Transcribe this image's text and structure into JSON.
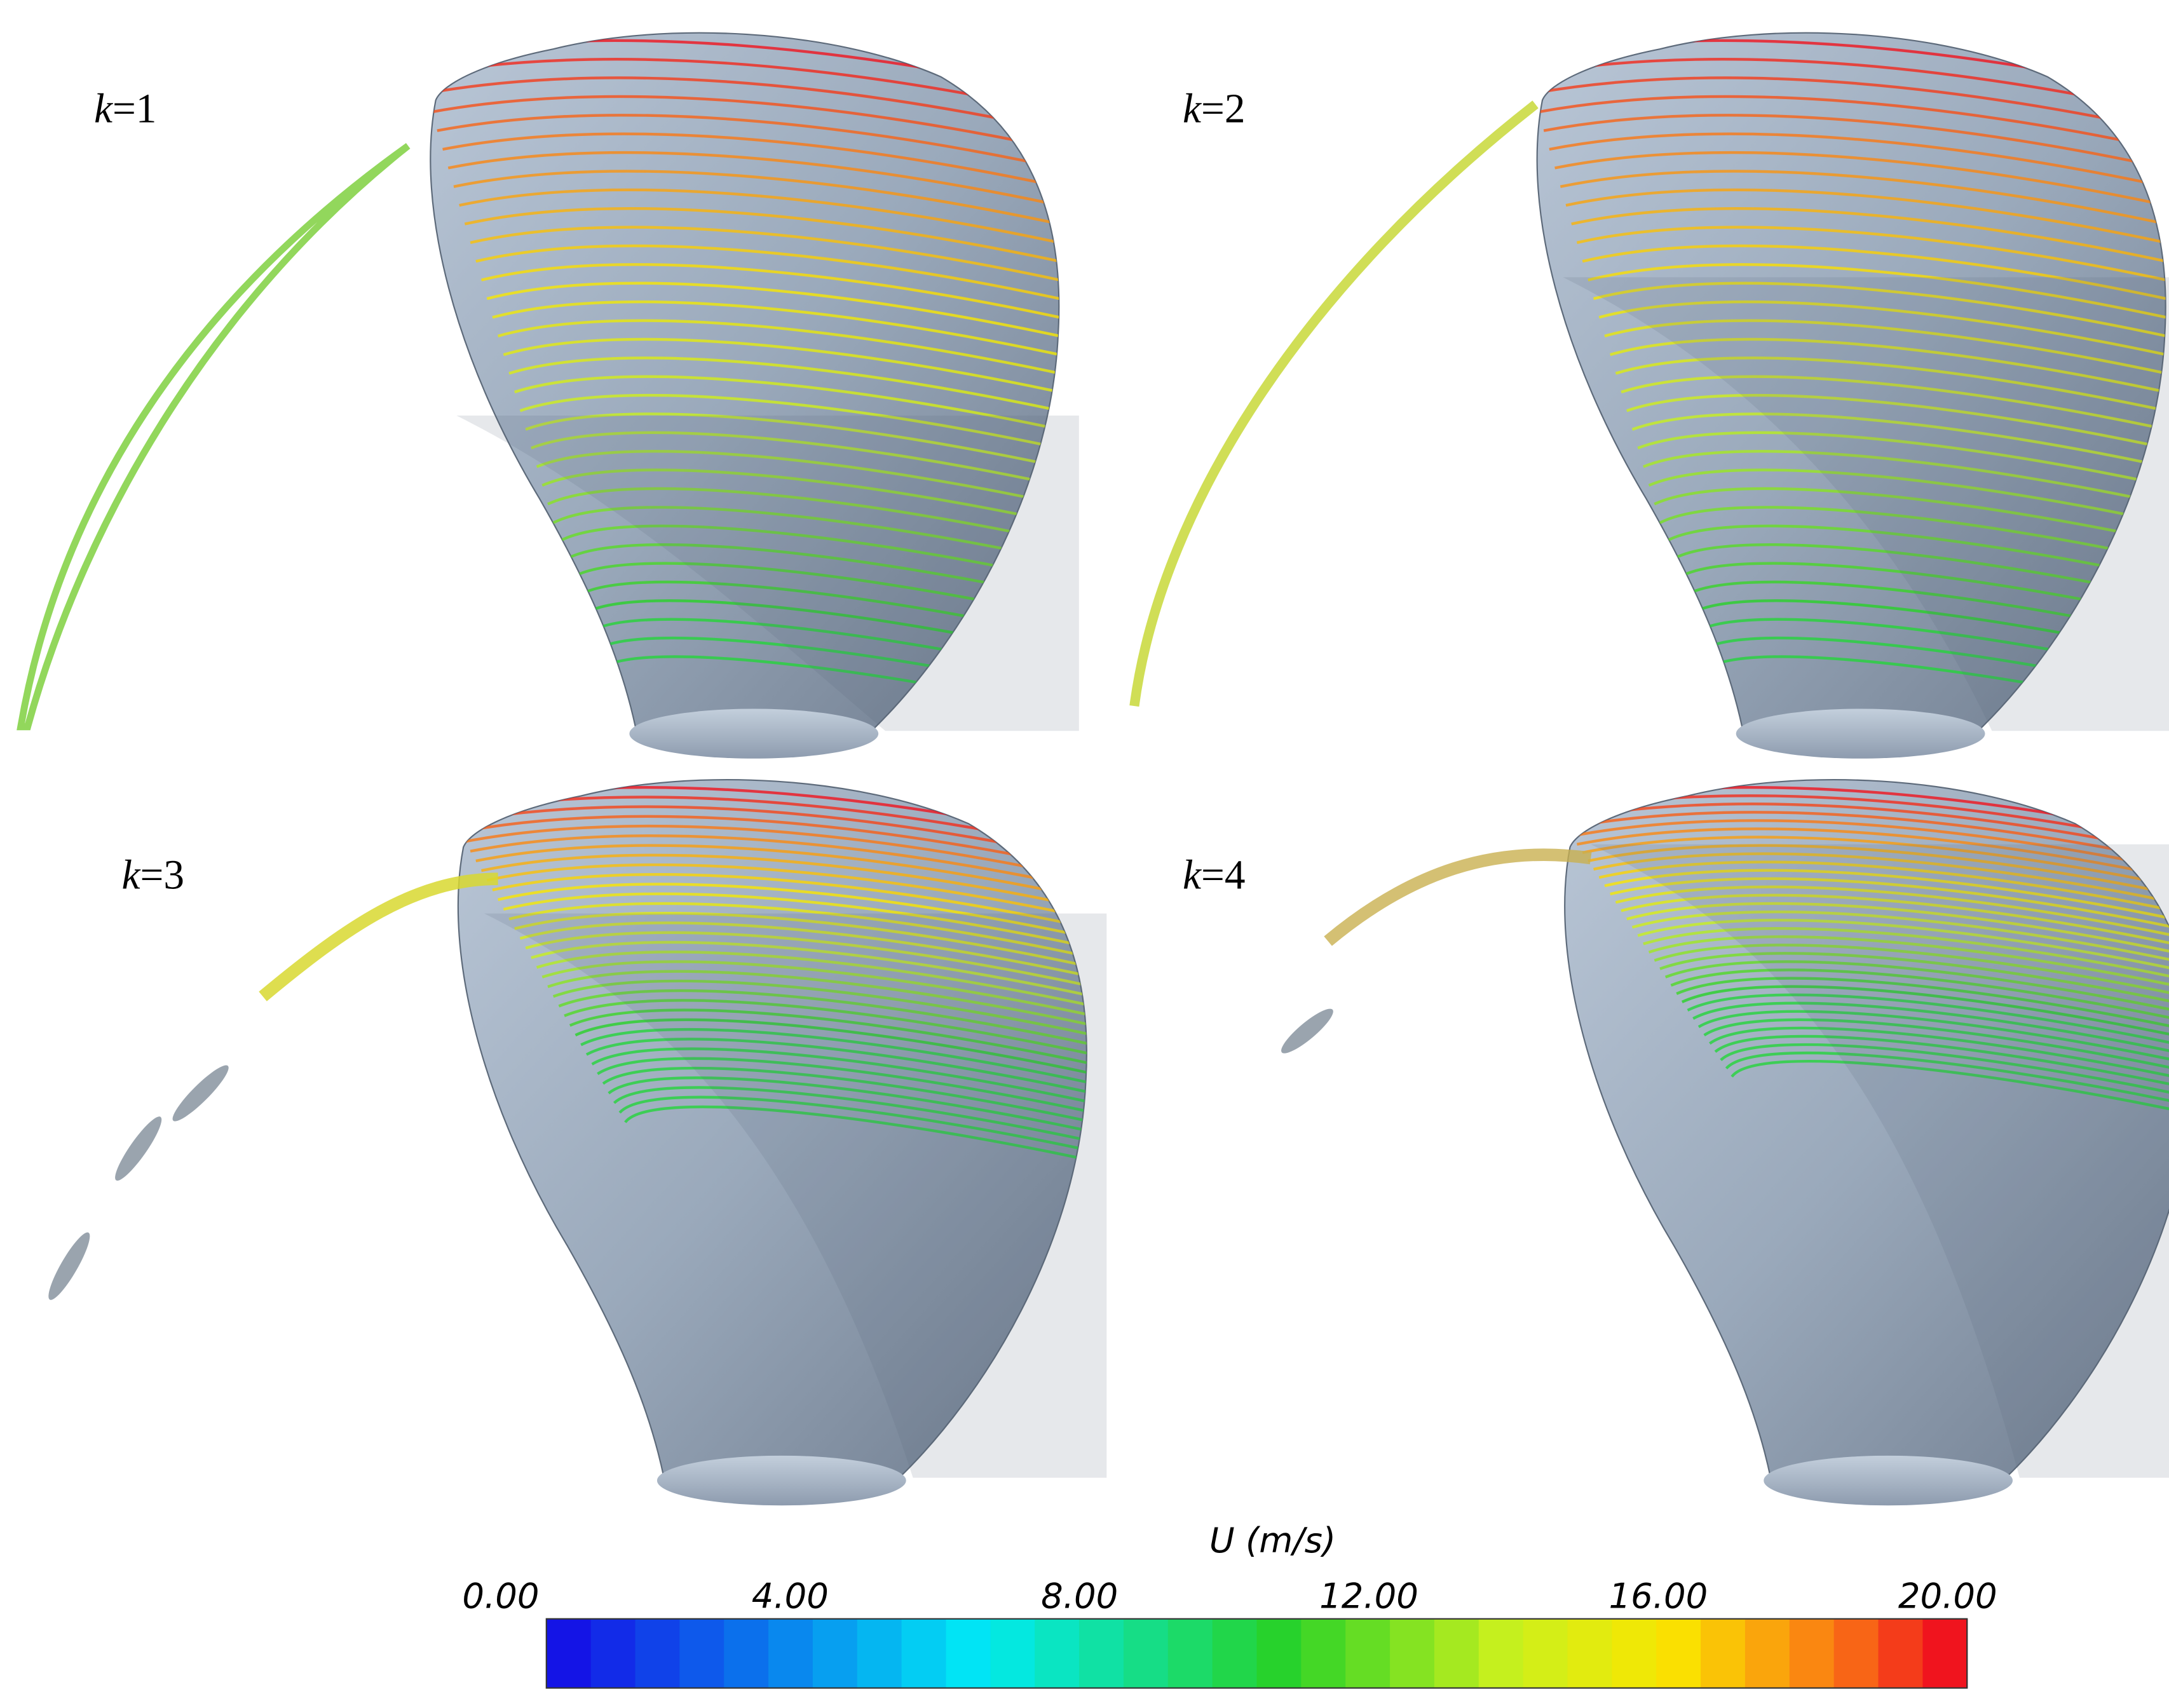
{
  "panels": [
    {
      "variable": "k",
      "value": "=1"
    },
    {
      "variable": "k",
      "value": "=2"
    },
    {
      "variable": "k",
      "value": "=3"
    },
    {
      "variable": "k",
      "value": "=4"
    }
  ],
  "colorbar": {
    "variable": "U",
    "unit": " (m/s)",
    "ticks": [
      "0.00",
      "4.00",
      "8.00",
      "12.00",
      "16.00",
      "20.00"
    ]
  }
}
